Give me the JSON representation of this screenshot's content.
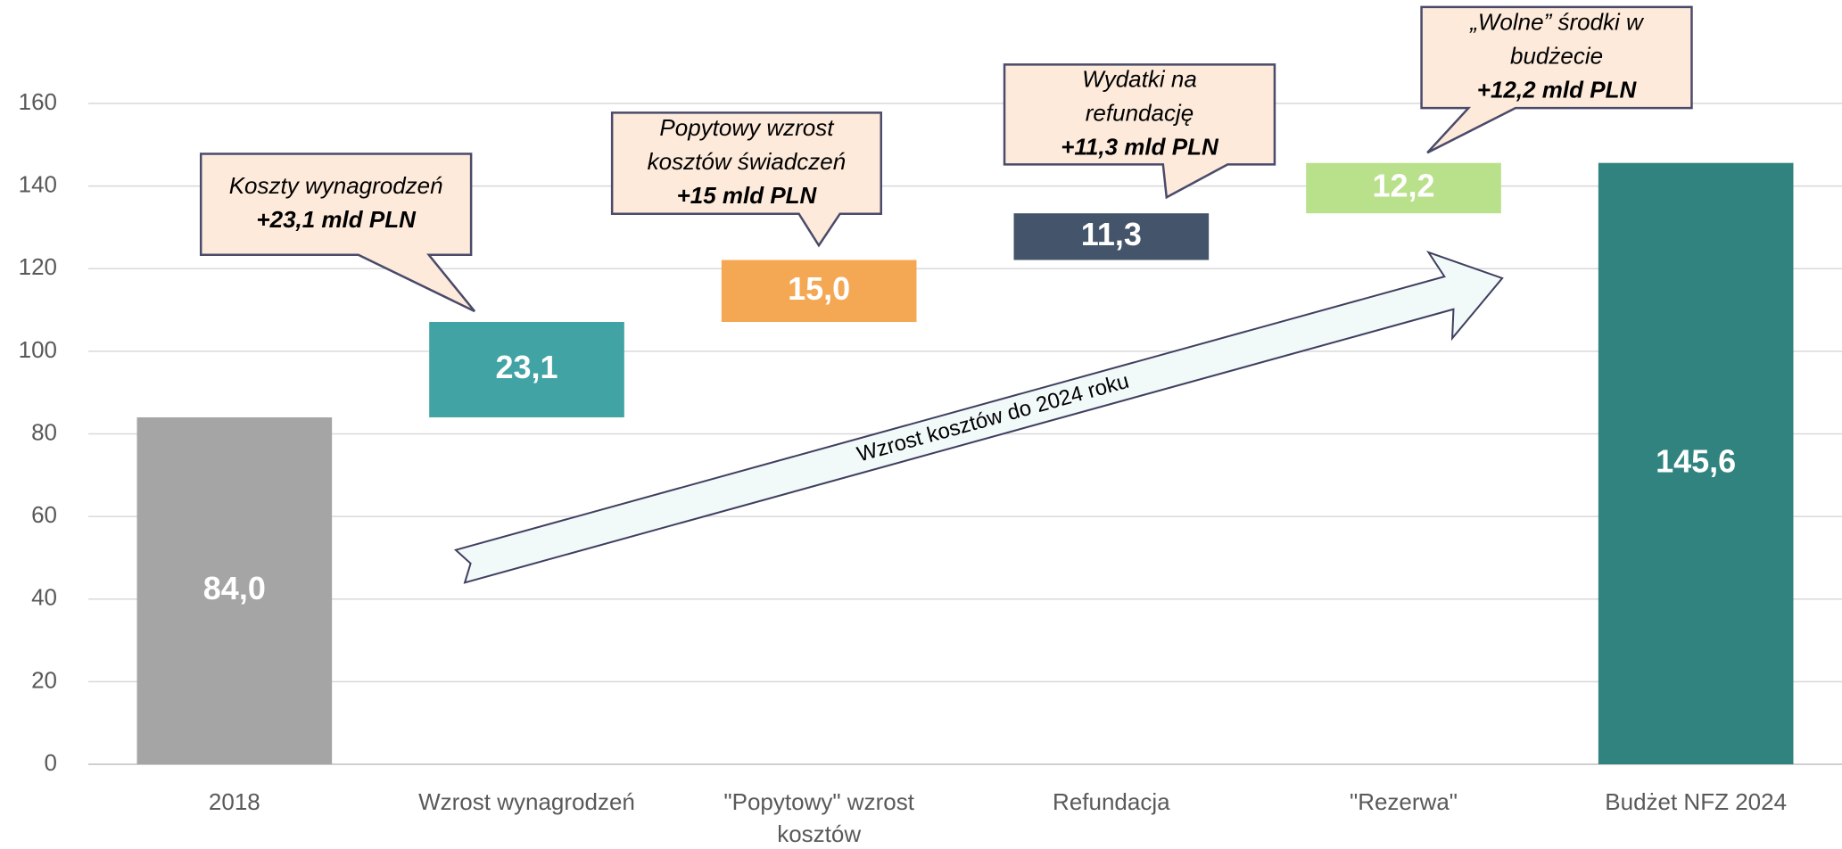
{
  "chart_data": {
    "type": "waterfall",
    "categories": [
      "2018",
      "Wzrost wynagrodzeń",
      "\"Popytowy\" wzrost kosztów",
      "Refundacja",
      "\"Rezerwa\"",
      "Budżet NFZ 2024"
    ],
    "values": [
      84.0,
      23.1,
      15.0,
      11.3,
      12.2,
      145.6
    ],
    "value_labels": [
      "84,0",
      "23,1",
      "15,0",
      "11,3",
      "12,2",
      "145,6"
    ],
    "bar_roles": [
      "total",
      "increase",
      "increase",
      "increase",
      "increase",
      "total"
    ],
    "colors": [
      "#a5a5a5",
      "#41a3a3",
      "#f5a854",
      "#44546a",
      "#b9e08a",
      "#31837f"
    ],
    "ylim": [
      0,
      160
    ],
    "yticks": [
      0,
      20,
      40,
      60,
      80,
      100,
      120,
      140,
      160
    ],
    "grid": true,
    "annotations": [
      {
        "lines": [
          "Koszty wynagrodzeń"
        ],
        "bold": "+23,1 mld PLN"
      },
      {
        "lines": [
          "Popytowy wzrost",
          "kosztów świadczeń"
        ],
        "bold": "+15 mld PLN"
      },
      {
        "lines": [
          "Wydatki na",
          "refundację"
        ],
        "bold": "+11,3 mld PLN"
      },
      {
        "lines": [
          "„Wolne” środki w",
          "budżecie"
        ],
        "bold": "+12,2 mld PLN"
      }
    ],
    "arrow_label": "Wzrost kosztów do 2024 roku"
  }
}
